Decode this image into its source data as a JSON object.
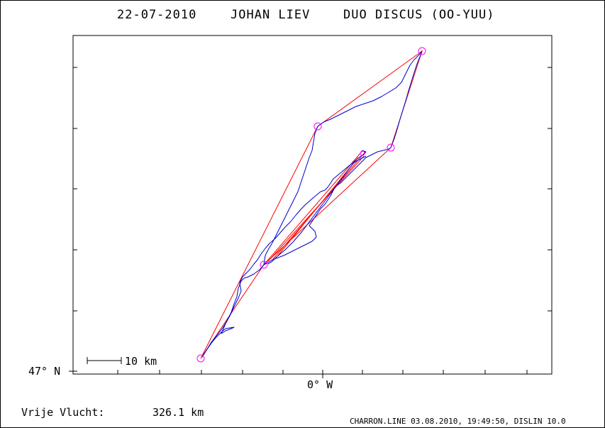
{
  "header": {
    "date": "22-07-2010",
    "pilot": "JOHAN LIEV",
    "glider": "DUO DISCUS (OO-YUU)"
  },
  "axes": {
    "y_label": "47° N",
    "x_label": "0° W"
  },
  "scale_bar": {
    "label": "10 km"
  },
  "distance": {
    "label": "Vrije Vlucht:",
    "value": "326.1 km"
  },
  "footer": {
    "credits": "CHARRON.LINE 03.08.2010, 19:49:50, DISLIN 10.0"
  },
  "colors": {
    "task_line": "#ff0000",
    "track": "#0000cc",
    "turnpoint": "#ff00ff",
    "axes": "#000000"
  }
}
